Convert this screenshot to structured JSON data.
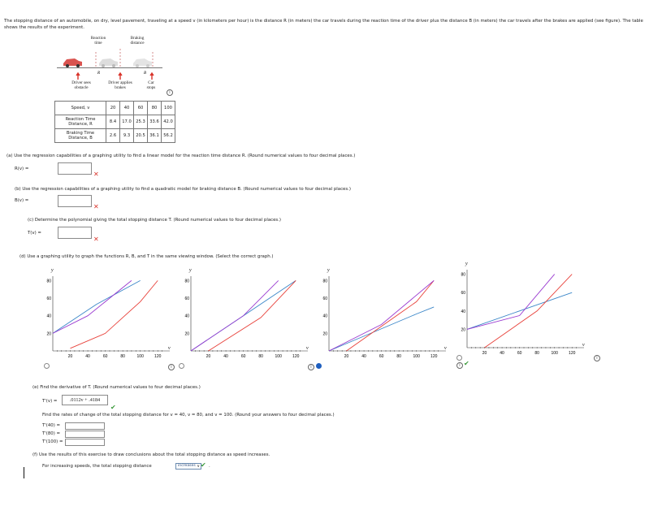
{
  "intro": "The stopping distance of an automobile, on dry, level pavement, traveling at a speed v (in kilometers per hour) is the distance R (in meters) the car travels during the reaction time of the driver plus the distance B (in meters) the car travels after the brakes are applied (see figure). The table shows the results of the experiment.",
  "figure": {
    "reaction_time": [
      "Reaction",
      "time"
    ],
    "braking_distance": [
      "Braking",
      "distance"
    ],
    "R": "R",
    "B": "B",
    "driver_sees": [
      "Driver sees",
      "obstacle"
    ],
    "driver_applies": [
      "Driver applies",
      "brakes"
    ],
    "car_stops": [
      "Car",
      "stops"
    ]
  },
  "table": {
    "headers": [
      "Speed, v",
      "Reaction Time Distance, R",
      "Braking Time Distance, B"
    ],
    "speed": [
      "20",
      "40",
      "60",
      "80",
      "100"
    ],
    "reaction": [
      "8.4",
      "17.0",
      "25.3",
      "33.6",
      "42.0"
    ],
    "braking": [
      "2.6",
      "9.3",
      "20.5",
      "36.1",
      "56.2"
    ]
  },
  "parts": {
    "a_text": "(a)  Use the regression capabilities of a graphing utility to find a linear model for the reaction time distance R. (Round numerical values to four decimal places.)",
    "a_label": "R(v) =",
    "b_text": "(b)  Use the regression capabilities of a graphing utility to find a quadratic model for braking distance B. (Round numerical values to four decimal places.)",
    "b_label": "B(v) =",
    "c_text": "(c)  Determine the polynomial giving the total stopping distance T. (Round numerical values to four decimal places.)",
    "c_label": "T(v) =",
    "d_text": "(d)  Use a graphing utility to graph the functions R, B, and T in the same viewing window. (Select the correct graph.)",
    "e_text": "(e)  Find the derivative of T. (Round numerical values to four decimal places.)",
    "e_label": "T'(v) =",
    "e_answer": ".0112v + .4184",
    "rates_text": "Find the rates of change of the total stopping distance for v = 40, v = 80, and v = 100. (Round your answers to four decimal places.)",
    "t40": "T'(40) =",
    "t80": "T'(80) =",
    "t100": "T'(100) =",
    "f_text": "(f)  Use the results of this exercise to draw conclusions about the total stopping distance as speed increases.",
    "f_label": "For increasing speeds, the total stopping distance",
    "f_selected": "increases",
    "f_period": "."
  },
  "graphs": {
    "y_label": "y",
    "v_label": "v",
    "x_ticks": [
      "20",
      "40",
      "60",
      "80",
      "100",
      "120"
    ],
    "y_ticks_a": [
      "20",
      "40",
      "60",
      "80"
    ],
    "y_ticks_d": [
      "20",
      "40",
      "60",
      "80"
    ],
    "selected_index": 2
  },
  "colors": {
    "R": "#3a86c8",
    "B": "#e8413a",
    "T": "#9a3ad0",
    "selected": "#1f5fbf",
    "wrong": "#d9342b",
    "correct": "#3c9a3c"
  },
  "chart_data": [
    {
      "type": "line",
      "series": [
        {
          "values": [
            [
              0,
              20
            ],
            [
              50,
              53
            ],
            [
              100,
              80
            ]
          ]
        },
        {
          "values": [
            [
              20,
              3
            ],
            [
              60,
              20
            ],
            [
              100,
              56
            ],
            [
              120,
              80
            ]
          ]
        },
        {
          "values": [
            [
              0,
              20
            ],
            [
              40,
              40
            ],
            [
              90,
              80
            ]
          ]
        }
      ],
      "ylim": [
        0,
        80
      ],
      "xlim": [
        0,
        130
      ]
    },
    {
      "type": "line",
      "series": [
        {
          "values": [
            [
              0,
              0
            ],
            [
              60,
              40
            ],
            [
              120,
              80
            ]
          ]
        },
        {
          "values": [
            [
              20,
              0
            ],
            [
              80,
              38
            ],
            [
              120,
              80
            ]
          ]
        },
        {
          "values": [
            [
              0,
              0
            ],
            [
              60,
              40
            ],
            [
              100,
              80
            ]
          ]
        }
      ],
      "ylim": [
        0,
        80
      ],
      "xlim": [
        0,
        130
      ]
    },
    {
      "type": "line",
      "series": [
        {
          "values": [
            [
              0,
              0
            ],
            [
              100,
              42
            ],
            [
              120,
              50
            ]
          ]
        },
        {
          "values": [
            [
              20,
              0
            ],
            [
              100,
              56
            ],
            [
              120,
              80
            ]
          ]
        },
        {
          "values": [
            [
              0,
              0
            ],
            [
              60,
              30
            ],
            [
              120,
              80
            ]
          ]
        }
      ],
      "ylim": [
        0,
        80
      ],
      "xlim": [
        0,
        130
      ]
    },
    {
      "type": "line",
      "series": [
        {
          "values": [
            [
              0,
              20
            ],
            [
              60,
              40
            ],
            [
              120,
              60
            ]
          ]
        },
        {
          "values": [
            [
              20,
              0
            ],
            [
              80,
              40
            ],
            [
              120,
              80
            ]
          ]
        },
        {
          "values": [
            [
              0,
              20
            ],
            [
              60,
              35
            ],
            [
              100,
              80
            ]
          ]
        }
      ],
      "ylim": [
        0,
        80
      ],
      "xlim": [
        0,
        130
      ]
    }
  ]
}
